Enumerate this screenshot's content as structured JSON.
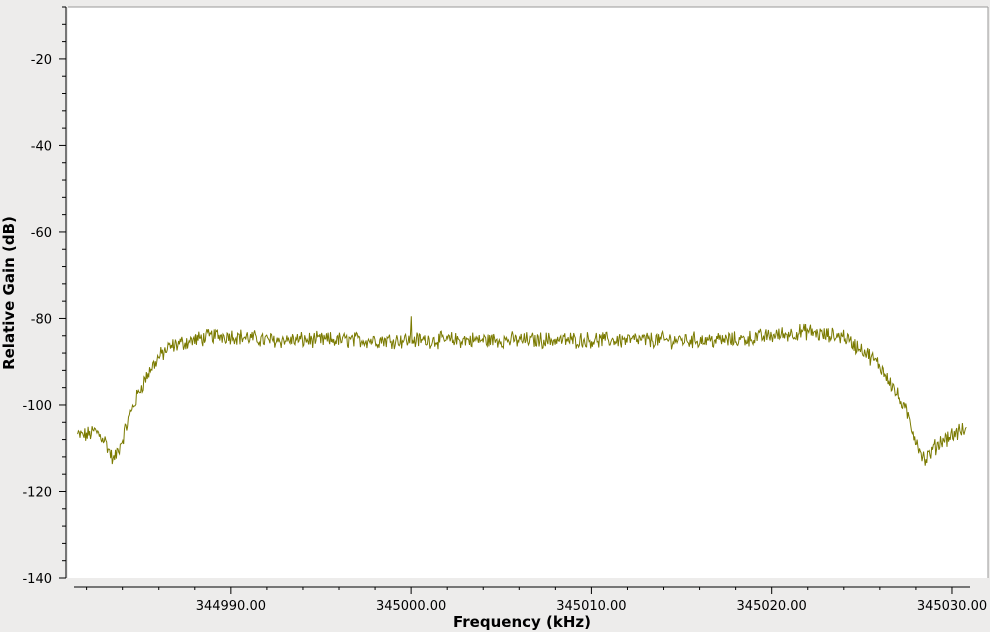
{
  "chart_data": {
    "type": "line",
    "title": "",
    "xlabel": "Frequency (kHz)",
    "ylabel": "Relative Gain (dB)",
    "xlim": [
      344981.3,
      345031.0
    ],
    "ylim": [
      -140,
      -8
    ],
    "x_ticks": [
      344990,
      345000,
      345010,
      345020,
      345030
    ],
    "x_tick_labels": [
      "344990.00",
      "345000.00",
      "345010.00",
      "345020.00",
      "345030.00"
    ],
    "y_ticks": [
      -20,
      -40,
      -60,
      -80,
      -100,
      -120,
      -140
    ],
    "y_tick_labels": [
      "-20",
      "-40",
      "-60",
      "-80",
      "-100",
      "-120",
      "-140"
    ],
    "grid": false,
    "series": [
      {
        "color": "#7a7a00",
        "x": [
          344981.5,
          344982.0,
          344982.5,
          344983.0,
          344983.5,
          344984.0,
          344984.5,
          344985.0,
          344985.5,
          344986.0,
          344986.5,
          344987.0,
          344988.0,
          344989.0,
          344990.0,
          344992.0,
          344995.0,
          344998.0,
          345000.0,
          345002.0,
          345005.0,
          345008.0,
          345010.0,
          345012.0,
          345015.0,
          345018.0,
          345020.0,
          345022.0,
          345023.0,
          345024.0,
          345024.5,
          345025.0,
          345025.5,
          345026.0,
          345026.5,
          345027.0,
          345027.5,
          345028.0,
          345028.5,
          345029.0,
          345029.5,
          345030.0,
          345030.5,
          345030.8
        ],
        "y": [
          -107,
          -107,
          -106,
          -108,
          -113,
          -108,
          -101,
          -96,
          -92,
          -89,
          -87,
          -86,
          -85,
          -84,
          -84,
          -85,
          -85,
          -85,
          -85,
          -85,
          -85,
          -85,
          -85,
          -85,
          -85,
          -85,
          -84,
          -83,
          -84,
          -84,
          -86,
          -87,
          -89,
          -91,
          -94,
          -98,
          -102,
          -108,
          -113,
          -110,
          -108,
          -107,
          -106,
          -106
        ],
        "spike": {
          "x": 345000.0,
          "y": -79.5
        }
      }
    ]
  }
}
